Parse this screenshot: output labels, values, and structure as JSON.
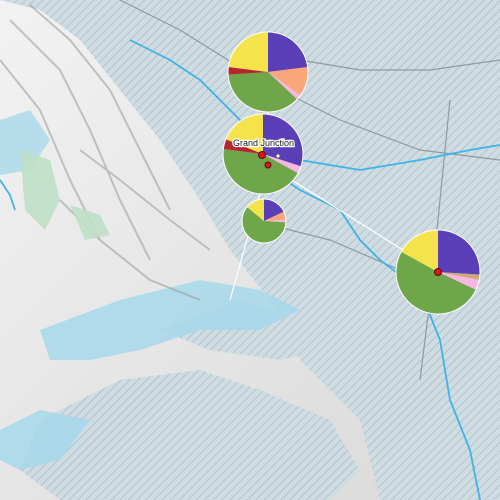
{
  "map": {
    "place_label": "Grand Junction",
    "colors": {
      "water": "#3fb3e6",
      "lake": "#a6d8ea",
      "hatch_fill": "#cfdde3",
      "hatch_line": "#9fb3bd",
      "forest": "#bfe0c6",
      "road": "#8a9ba4",
      "marker": "#e0141c",
      "leader": "#ffffff"
    },
    "slice_colors": {
      "purple": "#5a3fb8",
      "orange": "#f9a77a",
      "pink": "#f6b8e0",
      "green": "#6fa64a",
      "red": "#b52430",
      "yellow": "#f4e34a",
      "tan": "#cfa878"
    },
    "pies": [
      {
        "name": "pie-north",
        "slices": [
          {
            "color": "purple",
            "value": 23
          },
          {
            "color": "orange",
            "value": 12
          },
          {
            "color": "pink",
            "value": 2
          },
          {
            "color": "green",
            "value": 37
          },
          {
            "color": "red",
            "value": 3
          },
          {
            "color": "yellow",
            "value": 23
          }
        ]
      },
      {
        "name": "pie-grand-junction",
        "slices": [
          {
            "color": "purple",
            "value": 30
          },
          {
            "color": "pink",
            "value": 3
          },
          {
            "color": "green",
            "value": 44
          },
          {
            "color": "red",
            "value": 4
          },
          {
            "color": "yellow",
            "value": 19
          }
        ]
      },
      {
        "name": "pie-south",
        "slices": [
          {
            "color": "purple",
            "value": 18
          },
          {
            "color": "orange",
            "value": 6
          },
          {
            "color": "pink",
            "value": 2
          },
          {
            "color": "green",
            "value": 60
          },
          {
            "color": "yellow",
            "value": 14
          }
        ]
      },
      {
        "name": "pie-east",
        "slices": [
          {
            "color": "purple",
            "value": 26
          },
          {
            "color": "tan",
            "value": 2
          },
          {
            "color": "pink",
            "value": 4
          },
          {
            "color": "green",
            "value": 51
          },
          {
            "color": "yellow",
            "value": 17
          }
        ]
      }
    ]
  }
}
